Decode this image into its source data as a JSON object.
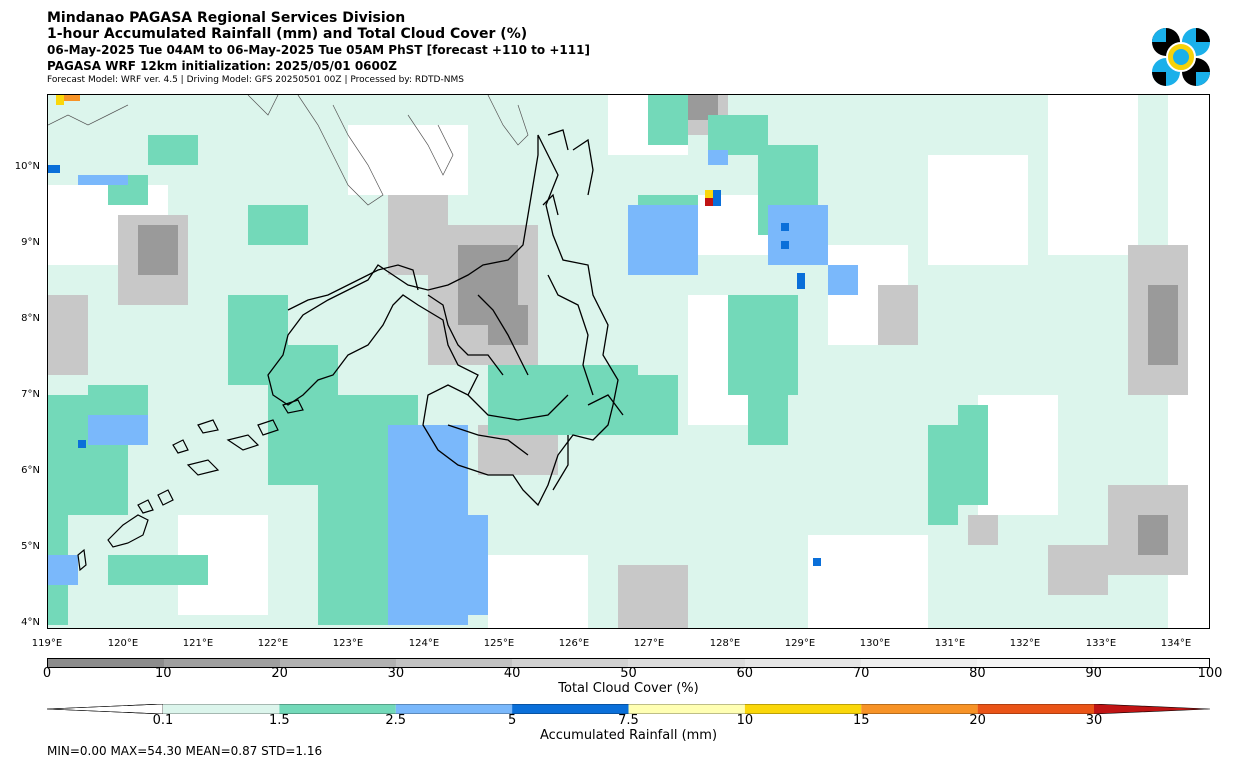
{
  "header": {
    "line1": "Mindanao PAGASA Regional Services Division",
    "line2": "1-hour Accumulated Rainfall (mm) and Total Cloud Cover (%)",
    "line3": "06-May-2025 Tue 04AM to 06-May-2025 Tue 05AM PhST [forecast +110 to +111]",
    "line4": "PAGASA WRF 12km initialization: 2025/05/01 0600Z",
    "line5": "Forecast Model: WRF ver. 4.5 | Driving Model: GFS 20250501 00Z | Processed by: RDTD-NMS"
  },
  "map": {
    "lat_labels": [
      "10°N",
      "9°N",
      "8°N",
      "7°N",
      "6°N",
      "5°N",
      "4°N"
    ],
    "lon_labels": [
      "119°E",
      "120°E",
      "121°E",
      "122°E",
      "123°E",
      "124°E",
      "125°E",
      "126°E",
      "127°E",
      "128°E",
      "129°E",
      "130°E",
      "131°E",
      "132°E",
      "133°E",
      "134°E"
    ]
  },
  "cloud_colorbar": {
    "title": "Total Cloud Cover (%)",
    "ticks": [
      "0",
      "10",
      "20",
      "30",
      "40",
      "50",
      "60",
      "70",
      "80",
      "90",
      "100"
    ],
    "colors": [
      "#8c8c8c",
      "#9f9f9f",
      "#b1b1b1",
      "#c2c2c2",
      "#d1d1d1",
      "#dcdcdc",
      "#e6e6e6",
      "#eeeeee",
      "#f5f5f5",
      "#fbfbfb"
    ]
  },
  "rain_colorbar": {
    "title": "Accumulated Rainfall (mm)",
    "ticks": [
      "0.1",
      "1.5",
      "2.5",
      "5",
      "7.5",
      "10",
      "15",
      "20",
      "30"
    ],
    "colors": [
      "#ffffff",
      "#dcf5ec",
      "#73d9b9",
      "#7ab8fb",
      "#0a6fd9",
      "#ffffb3",
      "#fad70a",
      "#f79327",
      "#ea5417",
      "#c01414"
    ]
  },
  "stats": "MIN=0.00   MAX=54.30   MEAN=0.87   STD=1.16"
}
